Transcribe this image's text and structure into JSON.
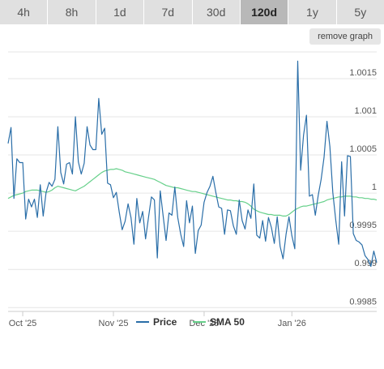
{
  "tabs": [
    {
      "label": "4h",
      "active": false
    },
    {
      "label": "8h",
      "active": false
    },
    {
      "label": "1d",
      "active": false
    },
    {
      "label": "7d",
      "active": false
    },
    {
      "label": "30d",
      "active": false
    },
    {
      "label": "120d",
      "active": true
    },
    {
      "label": "1y",
      "active": false
    },
    {
      "label": "5y",
      "active": false
    }
  ],
  "remove_graph_label": "remove graph",
  "chart_data": {
    "type": "line",
    "title": "",
    "xlabel": "",
    "ylabel": "",
    "ylim": [
      0.99845,
      1.00185
    ],
    "y_ticks": [
      1.0015,
      1.001,
      1.0005,
      1,
      0.9995,
      0.999,
      0.9985
    ],
    "y_tick_labels": [
      "1.0015",
      "1.001",
      "1.0005",
      "1",
      "0.9995",
      "0.999",
      "0.9985"
    ],
    "x_tick_labels": [
      "Oct '25",
      "Nov '25",
      "Dec '25",
      "Jan '26"
    ],
    "x_tick_index": [
      5,
      36,
      67,
      97
    ],
    "grid": true,
    "legend_position": "bottom",
    "series": [
      {
        "name": "Price",
        "color": "#2a6ea8",
        "values": [
          1.00065,
          1.00086,
          0.99993,
          1.00045,
          1.0004,
          1.0004,
          0.99966,
          0.99992,
          0.99982,
          0.99992,
          0.99968,
          1.00011,
          0.9997,
          1.00001,
          1.00014,
          1.00009,
          1.00018,
          1.00087,
          1.00027,
          1.00012,
          1.00038,
          1.0004,
          1.00025,
          1.001,
          1.00041,
          1.00025,
          1.00039,
          1.00087,
          1.00063,
          1.00057,
          1.00057,
          1.00124,
          1.00077,
          1.00085,
          1.00013,
          1.00011,
          0.99994,
          1.00001,
          0.99975,
          0.99952,
          0.99963,
          0.99986,
          0.99968,
          0.99933,
          0.99993,
          0.99961,
          0.99976,
          0.9994,
          0.99968,
          0.99995,
          0.99991,
          0.99915,
          1.00003,
          0.9997,
          0.99938,
          0.99974,
          0.99971,
          1.00008,
          0.99968,
          0.99946,
          0.9993,
          0.9999,
          0.99961,
          0.99983,
          0.99921,
          0.99951,
          0.99958,
          0.99988,
          1.00001,
          1.00009,
          1.00022,
          1.00001,
          0.99982,
          0.9998,
          0.99946,
          0.99978,
          0.99977,
          0.99957,
          0.99946,
          0.99991,
          0.99964,
          0.99953,
          0.99978,
          0.99967,
          1.00012,
          0.99945,
          0.99941,
          0.99964,
          0.99937,
          0.99968,
          0.99955,
          0.99934,
          0.99969,
          0.9993,
          0.99914,
          0.99946,
          0.99969,
          0.99944,
          0.99927,
          1.00173,
          1.0003,
          1.00076,
          1.00102,
          0.99996,
          0.99998,
          0.99971,
          0.99997,
          1.00018,
          1.00047,
          1.00094,
          1.00061,
          1.00001,
          0.99965,
          0.99933,
          1.00041,
          0.9997,
          1.00049,
          1.00048,
          0.99947,
          0.99938,
          0.99936,
          0.99932,
          0.99918,
          0.99913,
          0.99904,
          0.99924,
          0.99909
        ]
      },
      {
        "name": "SMA 50",
        "color": "#66d08a",
        "values": [
          0.99993,
          0.99995,
          0.99997,
          0.99998,
          0.99999,
          1.0,
          1.00002,
          1.00003,
          1.00004,
          1.00004,
          1.00004,
          1.00003,
          1.00002,
          1.00001,
          1.00002,
          1.00004,
          1.00007,
          1.00009,
          1.00008,
          1.00007,
          1.00006,
          1.00005,
          1.00004,
          1.00003,
          1.00005,
          1.00007,
          1.00009,
          1.00012,
          1.00015,
          1.00018,
          1.00021,
          1.00024,
          1.00027,
          1.00029,
          1.0003,
          1.00031,
          1.00031,
          1.00032,
          1.00031,
          1.0003,
          1.00028,
          1.00027,
          1.00026,
          1.00025,
          1.00024,
          1.00023,
          1.00022,
          1.00021,
          1.0002,
          1.00019,
          1.00018,
          1.00016,
          1.00014,
          1.00012,
          1.0001,
          1.00009,
          1.00008,
          1.00007,
          1.00007,
          1.00006,
          1.00005,
          1.00004,
          1.00003,
          1.00002,
          1.00002,
          1.00001,
          1.0,
          0.99999,
          0.99998,
          0.99997,
          0.99996,
          0.99995,
          0.99994,
          0.99993,
          0.99992,
          0.99991,
          0.99991,
          0.9999,
          0.9999,
          0.99989,
          0.99989,
          0.99988,
          0.99986,
          0.99983,
          0.99979,
          0.99977,
          0.99975,
          0.99974,
          0.99973,
          0.99972,
          0.99972,
          0.99971,
          0.99971,
          0.99971,
          0.9997,
          0.9997,
          0.99972,
          0.99975,
          0.99978,
          0.9998,
          0.99982,
          0.99983,
          0.99983,
          0.99984,
          0.99985,
          0.99986,
          0.99987,
          0.99988,
          0.99989,
          0.99991,
          0.99992,
          0.99993,
          0.99994,
          0.99995,
          0.99995,
          0.99996,
          0.99996,
          0.99996,
          0.99995,
          0.99995,
          0.99994,
          0.99994,
          0.99993,
          0.99993,
          0.99992,
          0.99992,
          0.99991
        ]
      }
    ]
  }
}
